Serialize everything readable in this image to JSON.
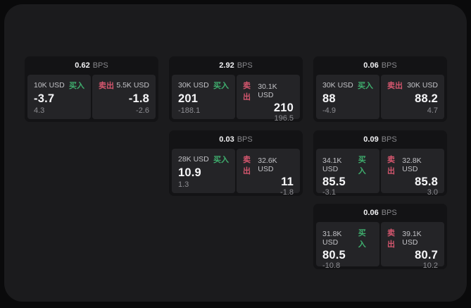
{
  "labels": {
    "buy": "买入",
    "sell": "卖出",
    "bps_unit": "BPS"
  },
  "colors": {
    "background": "#0a0a0b",
    "panel": "#1b1b1d",
    "card": "#131315",
    "tile": "#242427",
    "buy_accent": "#3fae6e",
    "sell_accent": "#d4566e"
  },
  "cards": [
    {
      "bps": "0.62",
      "buy": {
        "size": "10K USD",
        "price": "-3.7",
        "delta": "4.3"
      },
      "sell": {
        "size": "5.5K USD",
        "price": "-1.8",
        "delta": "-2.6"
      }
    },
    {
      "bps": "2.92",
      "buy": {
        "size": "30K USD",
        "price": "201",
        "delta": "-188.1"
      },
      "sell": {
        "size": "30.1K USD",
        "price": "210",
        "delta": "196.5"
      }
    },
    {
      "bps": "0.06",
      "buy": {
        "size": "30K USD",
        "price": "88",
        "delta": "-4.9"
      },
      "sell": {
        "size": "30K USD",
        "price": "88.2",
        "delta": "4.7"
      }
    },
    {
      "bps": "0.03",
      "buy": {
        "size": "28K USD",
        "price": "10.9",
        "delta": "1.3"
      },
      "sell": {
        "size": "32.6K USD",
        "price": "11",
        "delta": "-1.8"
      }
    },
    {
      "bps": "0.09",
      "buy": {
        "size": "34.1K USD",
        "price": "85.5",
        "delta": "-3.1"
      },
      "sell": {
        "size": "32.8K USD",
        "price": "85.8",
        "delta": "3.0"
      }
    },
    {
      "bps": "0.06",
      "buy": {
        "size": "31.8K USD",
        "price": "80.5",
        "delta": "-10.8"
      },
      "sell": {
        "size": "39.1K USD",
        "price": "80.7",
        "delta": "10.2"
      }
    }
  ]
}
